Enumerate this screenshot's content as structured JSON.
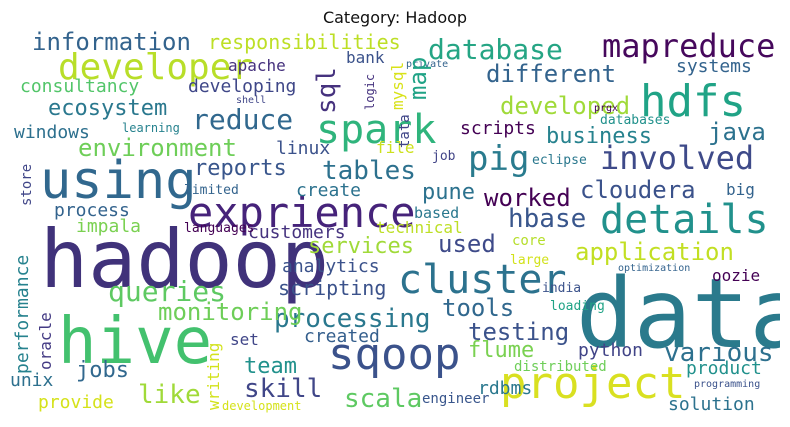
{
  "title": "Category: Hadoop",
  "words": {
    "data": {
      "text": "data",
      "color": "#2a7a8c"
    },
    "hadoop": {
      "text": "hadoop",
      "color": "#40327a"
    },
    "hive": {
      "text": "hive",
      "color": "#43c16e"
    },
    "expreience": {
      "text": "exprience",
      "color": "#46237a"
    },
    "using": {
      "text": "using",
      "color": "#31688e"
    },
    "project": {
      "text": "project",
      "color": "#d9e021"
    },
    "sqoop": {
      "text": "sqoop",
      "color": "#3b528b"
    },
    "hdfs": {
      "text": "hdfs",
      "color": "#20a386"
    },
    "spark": {
      "text": "spark",
      "color": "#2fb47c"
    },
    "details": {
      "text": "details",
      "color": "#21918c"
    },
    "cluster": {
      "text": "cluster",
      "color": "#2c728e"
    },
    "developer": {
      "text": "developer",
      "color": "#b8de29"
    },
    "mapreduce": {
      "text": "mapreduce",
      "color": "#46085c"
    },
    "pig": {
      "text": "pig",
      "color": "#297b8e"
    },
    "involved": {
      "text": "involved",
      "color": "#3e4a89"
    },
    "database": {
      "text": "database",
      "color": "#25a584"
    },
    "information": {
      "text": "information",
      "color": "#33638d"
    },
    "tables": {
      "text": "tables",
      "color": "#2d718e"
    },
    "queries": {
      "text": "queries",
      "color": "#5ec962"
    },
    "application": {
      "text": "application",
      "color": "#c2df23"
    },
    "processing": {
      "text": "processing",
      "color": "#2a788e"
    },
    "various": {
      "text": "various",
      "color": "#2d708e"
    },
    "reduce": {
      "text": "reduce",
      "color": "#31688e"
    },
    "environment": {
      "text": "environment",
      "color": "#6ece58"
    },
    "cloudera": {
      "text": "cloudera",
      "color": "#3b528b"
    },
    "hbase": {
      "text": "hbase",
      "color": "#39568c"
    },
    "worked": {
      "text": "worked",
      "color": "#440154"
    },
    "different": {
      "text": "different",
      "color": "#33638d"
    },
    "developed": {
      "text": "developed",
      "color": "#a0da39"
    },
    "java": {
      "text": "java",
      "color": "#2c728e"
    },
    "business": {
      "text": "business",
      "color": "#26828e"
    },
    "responsibilities": {
      "text": "responsibilities",
      "color": "#bddf26"
    },
    "monitoring": {
      "text": "monitoring",
      "color": "#6ece58"
    },
    "testing": {
      "text": "testing",
      "color": "#3b528b"
    },
    "skill": {
      "text": "skill",
      "color": "#404688"
    },
    "like": {
      "text": "like",
      "color": "#a0da39"
    },
    "scala": {
      "text": "scala",
      "color": "#5ec962"
    },
    "tools": {
      "text": "tools",
      "color": "#31688e"
    },
    "flume": {
      "text": "flume",
      "color": "#7ad151"
    },
    "team": {
      "text": "team",
      "color": "#21918c"
    },
    "used": {
      "text": "used",
      "color": "#3e4a89"
    },
    "reports": {
      "text": "reports",
      "color": "#39568c"
    },
    "ecosystem": {
      "text": "ecosystem",
      "color": "#2a788e"
    },
    "consultancy": {
      "text": "consultancy",
      "color": "#52c569"
    },
    "developing": {
      "text": "developing",
      "color": "#3f4788"
    },
    "sql": {
      "text": "sql",
      "color": "#46327e"
    },
    "map": {
      "text": "map",
      "color": "#20a386"
    },
    "services": {
      "text": "services",
      "color": "#a0da39"
    },
    "pune": {
      "text": "pune",
      "color": "#2c728e"
    },
    "scripts": {
      "text": "scripts",
      "color": "#440154"
    },
    "scripting": {
      "text": "scripting",
      "color": "#3b528b"
    },
    "jobs": {
      "text": "jobs",
      "color": "#31688e"
    },
    "created": {
      "text": "created",
      "color": "#355f8d"
    },
    "python": {
      "text": "python",
      "color": "#414487"
    },
    "product": {
      "text": "product",
      "color": "#21918c"
    },
    "solution": {
      "text": "solution",
      "color": "#2c728e"
    },
    "rdbms": {
      "text": "rdbms",
      "color": "#2a788e"
    },
    "performance": {
      "text": "performance",
      "color": "#26828e"
    },
    "windows": {
      "text": "windows",
      "color": "#2d708e"
    },
    "linux": {
      "text": "linux",
      "color": "#3b528b"
    },
    "process": {
      "text": "process",
      "color": "#33638d"
    },
    "impala": {
      "text": "impala",
      "color": "#7ad151"
    },
    "customers": {
      "text": "customers",
      "color": "#46337f"
    },
    "analytics": {
      "text": "analytics",
      "color": "#3b528b"
    },
    "create": {
      "text": "create",
      "color": "#2c728e"
    },
    "apache": {
      "text": "apache",
      "color": "#46327e"
    },
    "bank": {
      "text": "bank",
      "color": "#3b528b"
    },
    "systems": {
      "text": "systems",
      "color": "#33638d"
    },
    "mysql": {
      "text": "mysql",
      "color": "#d8e219"
    },
    "logic": {
      "text": "logic",
      "color": "#46337f"
    },
    "tata": {
      "text": "tata",
      "color": "#404688"
    },
    "file": {
      "text": "file",
      "color": "#cde11d"
    },
    "job": {
      "text": "job",
      "color": "#414487"
    },
    "eclipse": {
      "text": "eclipse",
      "color": "#2a788e"
    },
    "big": {
      "text": "big",
      "color": "#33638d"
    },
    "oozie": {
      "text": "oozie",
      "color": "#440154"
    },
    "technical": {
      "text": "technical",
      "color": "#bddf26"
    },
    "based": {
      "text": "based",
      "color": "#2a788e"
    },
    "core": {
      "text": "core",
      "color": "#b5de2b"
    },
    "large": {
      "text": "large",
      "color": "#d2e21b"
    },
    "india": {
      "text": "india",
      "color": "#3b528b"
    },
    "loading": {
      "text": "loading",
      "color": "#20a386"
    },
    "distributed": {
      "text": "distributed",
      "color": "#6ece58"
    },
    "engineer": {
      "text": "engineer",
      "color": "#39568c"
    },
    "unix": {
      "text": "unix",
      "color": "#2d708e"
    },
    "provide": {
      "text": "provide",
      "color": "#d5e21a"
    },
    "writing": {
      "text": "writing",
      "color": "#d2e21b"
    },
    "set": {
      "text": "set",
      "color": "#404688"
    },
    "oracle": {
      "text": "oracle",
      "color": "#443b84"
    },
    "store": {
      "text": "store",
      "color": "#404688"
    },
    "limited": {
      "text": "limited",
      "color": "#33638d"
    },
    "languages": {
      "text": "languages",
      "color": "#440154"
    },
    "optimization": {
      "text": "optimization",
      "color": "#33638d"
    },
    "programming": {
      "text": "programming",
      "color": "#3b528b"
    },
    "development": {
      "text": "development",
      "color": "#d5e21a"
    },
    "learning": {
      "text": "learning",
      "color": "#26828e"
    },
    "shell": {
      "text": "shell",
      "color": "#404688"
    },
    "private": {
      "text": "private",
      "color": "#33638d"
    },
    "prgx": {
      "text": "prgx",
      "color": "#440154"
    },
    "databases": {
      "text": "databases",
      "color": "#21918c"
    }
  }
}
